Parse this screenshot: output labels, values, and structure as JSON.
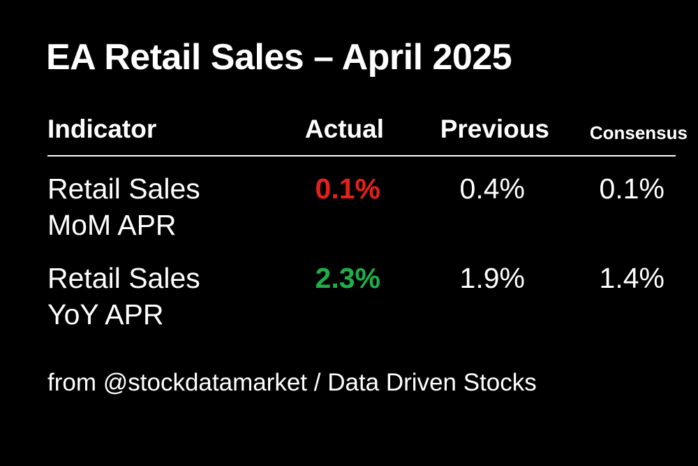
{
  "header": {
    "title": "EA Retail Sales – April 2025"
  },
  "table": {
    "columns": [
      "Indicator",
      "Actual",
      "Previous",
      "Consensus"
    ],
    "rows": [
      [
        "Retail Sales MoM APR",
        "0.1%",
        "0.4%",
        "0.1%"
      ],
      [
        "Retail Sales YoY APR",
        "2.3%",
        "1.9%",
        "1.4%"
      ]
    ],
    "actual_colors": [
      "#e3211c",
      "#1fae4b"
    ]
  },
  "footer": {
    "source": "from @stockdatamarket / Data Driven Stocks"
  }
}
